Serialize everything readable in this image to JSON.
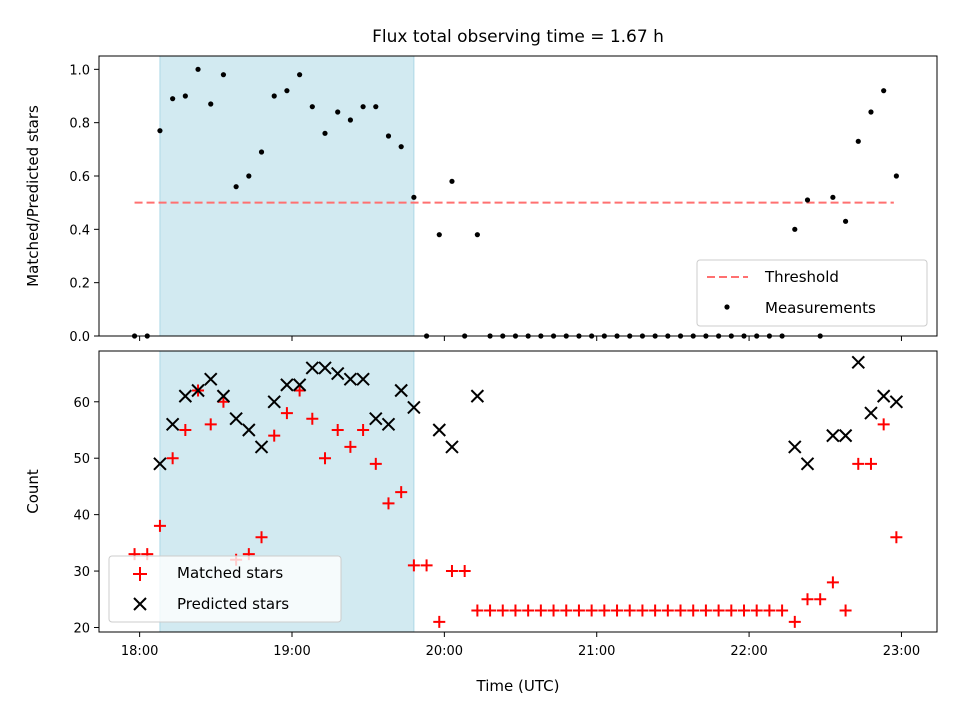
{
  "title": "Flux total observing time = 1.67 h",
  "xlabel": "Time (UTC)",
  "colors": {
    "shade": "#add8e6",
    "threshold": "#ff7070",
    "measurements": "#000000",
    "matched": "#ff0000",
    "predicted": "#000000"
  },
  "chart_data": [
    {
      "type": "scatter",
      "ylabel": "Matched/Predicted stars",
      "xlim": [
        "17:44",
        "23:14"
      ],
      "ylim": [
        0,
        1.05
      ],
      "x_ticks": [
        "18:00",
        "19:00",
        "20:00",
        "21:00",
        "22:00",
        "23:00"
      ],
      "y_ticks": [
        "0.0",
        "0.2",
        "0.4",
        "0.6",
        "0.8",
        "1.0"
      ],
      "shaded_region": {
        "x": [
          "18:08",
          "19:48"
        ]
      },
      "threshold": {
        "name": "Threshold",
        "value": 0.5,
        "x": [
          "17:58",
          "22:57"
        ],
        "style": "dashed"
      },
      "series": [
        {
          "name": "Measurements",
          "marker": "dot",
          "points": [
            [
              "17:58",
              0.0
            ],
            [
              "18:03",
              0.0
            ],
            [
              "18:08",
              0.77
            ],
            [
              "18:13",
              0.89
            ],
            [
              "18:18",
              0.9
            ],
            [
              "18:23",
              1.0
            ],
            [
              "18:28",
              0.87
            ],
            [
              "18:33",
              0.98
            ],
            [
              "18:38",
              0.56
            ],
            [
              "18:43",
              0.6
            ],
            [
              "18:48",
              0.69
            ],
            [
              "18:53",
              0.9
            ],
            [
              "18:58",
              0.92
            ],
            [
              "19:03",
              0.98
            ],
            [
              "19:08",
              0.86
            ],
            [
              "19:13",
              0.76
            ],
            [
              "19:18",
              0.84
            ],
            [
              "19:23",
              0.81
            ],
            [
              "19:28",
              0.86
            ],
            [
              "19:33",
              0.86
            ],
            [
              "19:38",
              0.75
            ],
            [
              "19:43",
              0.71
            ],
            [
              "19:48",
              0.52
            ],
            [
              "19:53",
              0.0
            ],
            [
              "19:58",
              0.38
            ],
            [
              "20:03",
              0.58
            ],
            [
              "20:08",
              0.0
            ],
            [
              "20:13",
              0.38
            ],
            [
              "20:18",
              0.0
            ],
            [
              "20:23",
              0.0
            ],
            [
              "20:28",
              0.0
            ],
            [
              "20:33",
              0.0
            ],
            [
              "20:38",
              0.0
            ],
            [
              "20:43",
              0.0
            ],
            [
              "20:48",
              0.0
            ],
            [
              "20:53",
              0.0
            ],
            [
              "20:58",
              0.0
            ],
            [
              "21:03",
              0.0
            ],
            [
              "21:08",
              0.0
            ],
            [
              "21:13",
              0.0
            ],
            [
              "21:18",
              0.0
            ],
            [
              "21:23",
              0.0
            ],
            [
              "21:28",
              0.0
            ],
            [
              "21:33",
              0.0
            ],
            [
              "21:38",
              0.0
            ],
            [
              "21:43",
              0.0
            ],
            [
              "21:48",
              0.0
            ],
            [
              "21:53",
              0.0
            ],
            [
              "21:58",
              0.0
            ],
            [
              "22:03",
              0.0
            ],
            [
              "22:08",
              0.0
            ],
            [
              "22:13",
              0.0
            ],
            [
              "22:18",
              0.4
            ],
            [
              "22:23",
              0.51
            ],
            [
              "22:28",
              0.0
            ],
            [
              "22:33",
              0.52
            ],
            [
              "22:38",
              0.43
            ],
            [
              "22:43",
              0.73
            ],
            [
              "22:48",
              0.84
            ],
            [
              "22:53",
              0.92
            ],
            [
              "22:58",
              0.6
            ]
          ]
        }
      ],
      "legend": {
        "position": "lower right",
        "entries": [
          "Threshold",
          "Measurements"
        ]
      }
    },
    {
      "type": "scatter",
      "ylabel": "Count",
      "xlim": [
        "17:44",
        "23:14"
      ],
      "ylim": [
        19.2,
        69
      ],
      "x_ticks": [
        "18:00",
        "19:00",
        "20:00",
        "21:00",
        "22:00",
        "23:00"
      ],
      "y_ticks": [
        "20",
        "30",
        "40",
        "50",
        "60"
      ],
      "shaded_region": {
        "x": [
          "18:08",
          "19:48"
        ]
      },
      "series": [
        {
          "name": "Matched stars",
          "marker": "plus",
          "points": [
            [
              "17:58",
              33
            ],
            [
              "18:03",
              33
            ],
            [
              "18:08",
              38
            ],
            [
              "18:13",
              50
            ],
            [
              "18:18",
              55
            ],
            [
              "18:23",
              62
            ],
            [
              "18:28",
              56
            ],
            [
              "18:33",
              60
            ],
            [
              "18:38",
              32
            ],
            [
              "18:43",
              33
            ],
            [
              "18:48",
              36
            ],
            [
              "18:53",
              54
            ],
            [
              "18:58",
              58
            ],
            [
              "19:03",
              62
            ],
            [
              "19:08",
              57
            ],
            [
              "19:13",
              50
            ],
            [
              "19:18",
              55
            ],
            [
              "19:23",
              52
            ],
            [
              "19:28",
              55
            ],
            [
              "19:33",
              49
            ],
            [
              "19:38",
              42
            ],
            [
              "19:43",
              44
            ],
            [
              "19:48",
              31
            ],
            [
              "19:53",
              31
            ],
            [
              "19:58",
              21
            ],
            [
              "20:03",
              30
            ],
            [
              "20:08",
              30
            ],
            [
              "20:13",
              23
            ],
            [
              "20:18",
              23
            ],
            [
              "20:23",
              23
            ],
            [
              "20:28",
              23
            ],
            [
              "20:33",
              23
            ],
            [
              "20:38",
              23
            ],
            [
              "20:43",
              23
            ],
            [
              "20:48",
              23
            ],
            [
              "20:53",
              23
            ],
            [
              "20:58",
              23
            ],
            [
              "21:03",
              23
            ],
            [
              "21:08",
              23
            ],
            [
              "21:13",
              23
            ],
            [
              "21:18",
              23
            ],
            [
              "21:23",
              23
            ],
            [
              "21:28",
              23
            ],
            [
              "21:33",
              23
            ],
            [
              "21:38",
              23
            ],
            [
              "21:43",
              23
            ],
            [
              "21:48",
              23
            ],
            [
              "21:53",
              23
            ],
            [
              "21:58",
              23
            ],
            [
              "22:03",
              23
            ],
            [
              "22:08",
              23
            ],
            [
              "22:13",
              23
            ],
            [
              "22:18",
              21
            ],
            [
              "22:23",
              25
            ],
            [
              "22:28",
              25
            ],
            [
              "22:33",
              28
            ],
            [
              "22:38",
              23
            ],
            [
              "22:43",
              49
            ],
            [
              "22:48",
              49
            ],
            [
              "22:53",
              56
            ],
            [
              "22:58",
              36
            ]
          ]
        },
        {
          "name": "Predicted stars",
          "marker": "x",
          "points": [
            [
              "18:08",
              49
            ],
            [
              "18:13",
              56
            ],
            [
              "18:18",
              61
            ],
            [
              "18:23",
              62
            ],
            [
              "18:28",
              64
            ],
            [
              "18:33",
              61
            ],
            [
              "18:38",
              57
            ],
            [
              "18:43",
              55
            ],
            [
              "18:48",
              52
            ],
            [
              "18:53",
              60
            ],
            [
              "18:58",
              63
            ],
            [
              "19:03",
              63
            ],
            [
              "19:08",
              66
            ],
            [
              "19:13",
              66
            ],
            [
              "19:18",
              65
            ],
            [
              "19:23",
              64
            ],
            [
              "19:28",
              64
            ],
            [
              "19:33",
              57
            ],
            [
              "19:38",
              56
            ],
            [
              "19:43",
              62
            ],
            [
              "19:48",
              59
            ],
            [
              "19:58",
              55
            ],
            [
              "20:03",
              52
            ],
            [
              "20:13",
              61
            ],
            [
              "22:18",
              52
            ],
            [
              "22:23",
              49
            ],
            [
              "22:33",
              54
            ],
            [
              "22:38",
              54
            ],
            [
              "22:43",
              67
            ],
            [
              "22:48",
              58
            ],
            [
              "22:53",
              61
            ],
            [
              "22:58",
              60
            ]
          ]
        }
      ],
      "legend": {
        "position": "lower left",
        "entries": [
          "Matched stars",
          "Predicted stars"
        ]
      }
    }
  ]
}
